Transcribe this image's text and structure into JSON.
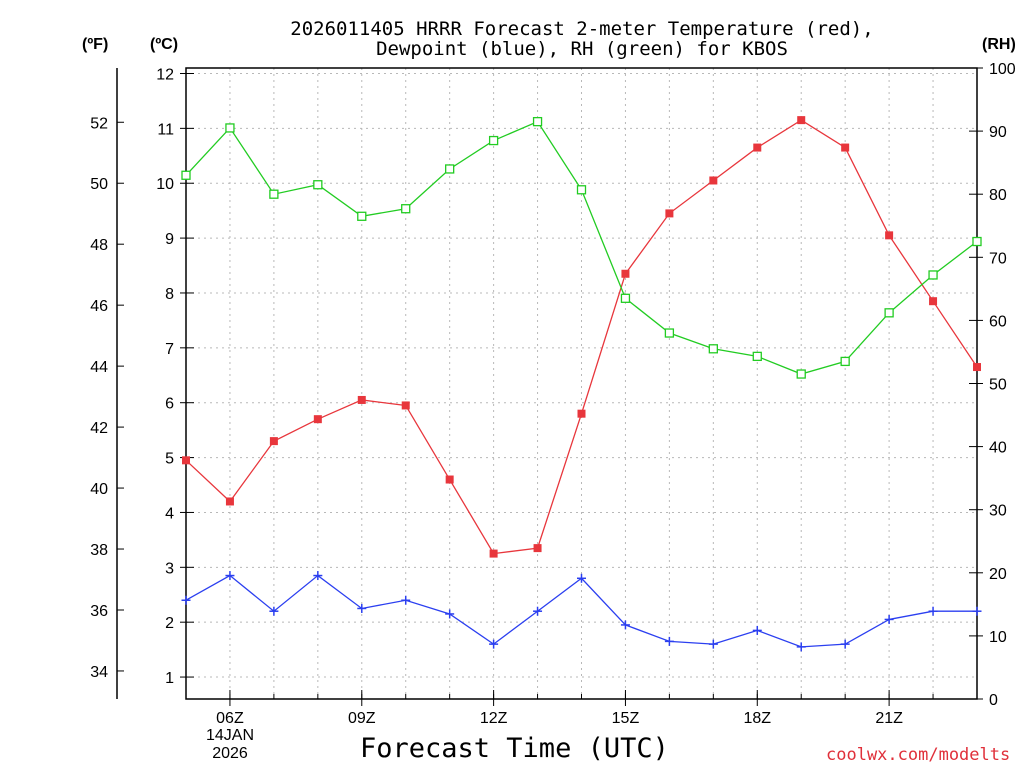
{
  "title": {
    "line1": "2026011405 HRRR Forecast 2-meter Temperature (red),",
    "line2": "Dewpoint (blue), RH (green) for KBOS"
  },
  "units": {
    "fahrenheit": "(ºF)",
    "celsius": "(ºC)",
    "rh": "(RH)"
  },
  "date_label": {
    "day": "14JAN",
    "year": "2026"
  },
  "credit": "coolwx.com/modelts",
  "chart_data": {
    "type": "line",
    "title": "2026011405 HRRR Forecast 2-meter Temperature (red), Dewpoint (blue), RH (green) for KBOS",
    "xlabel": "Forecast Time (UTC)",
    "x_hours": [
      5,
      6,
      7,
      8,
      9,
      10,
      11,
      12,
      13,
      14,
      15,
      16,
      17,
      18,
      19,
      20,
      21,
      22,
      23
    ],
    "xlim": [
      5,
      23
    ],
    "xticks": [
      {
        "hour": 6,
        "label": "06Z"
      },
      {
        "hour": 9,
        "label": "09Z"
      },
      {
        "hour": 12,
        "label": "12Z"
      },
      {
        "hour": 15,
        "label": "15Z"
      },
      {
        "hour": 18,
        "label": "18Z"
      },
      {
        "hour": 21,
        "label": "21Z"
      }
    ],
    "y_celsius": {
      "range": [
        0.6,
        12.1
      ],
      "ticks": [
        1,
        2,
        3,
        4,
        5,
        6,
        7,
        8,
        9,
        10,
        11,
        12
      ]
    },
    "y_fahrenheit": {
      "range": [
        33.08,
        53.78
      ],
      "ticks": [
        34,
        36,
        38,
        40,
        42,
        44,
        46,
        48,
        50,
        52
      ]
    },
    "y_rh": {
      "range": [
        0,
        100
      ],
      "ticks": [
        0,
        10,
        20,
        30,
        40,
        50,
        60,
        70,
        80,
        90,
        100
      ]
    },
    "series": [
      {
        "name": "Temperature",
        "axis": "celsius",
        "color": "#e8363c",
        "marker": "filled-square",
        "values": [
          4.95,
          4.2,
          5.3,
          5.7,
          6.05,
          5.95,
          4.6,
          3.25,
          3.35,
          5.8,
          8.35,
          9.45,
          10.05,
          10.65,
          11.15,
          10.65,
          9.05,
          7.85,
          6.65
        ]
      },
      {
        "name": "Dewpoint",
        "axis": "celsius",
        "color": "#2b3ff0",
        "marker": "plus",
        "values": [
          2.4,
          2.85,
          2.2,
          2.85,
          2.25,
          2.4,
          2.15,
          1.6,
          2.2,
          2.8,
          1.95,
          1.65,
          1.6,
          1.85,
          1.55,
          1.6,
          2.05,
          2.2,
          2.2
        ]
      },
      {
        "name": "RH",
        "axis": "rh",
        "color": "#22cc22",
        "marker": "open-square",
        "values": [
          83,
          90.5,
          80,
          81.5,
          76.5,
          77.7,
          84,
          88.5,
          91.5,
          80.7,
          63.5,
          58,
          55.5,
          54.3,
          51.5,
          53.5,
          61.2,
          67.2,
          72.5
        ]
      }
    ],
    "grid": true
  }
}
